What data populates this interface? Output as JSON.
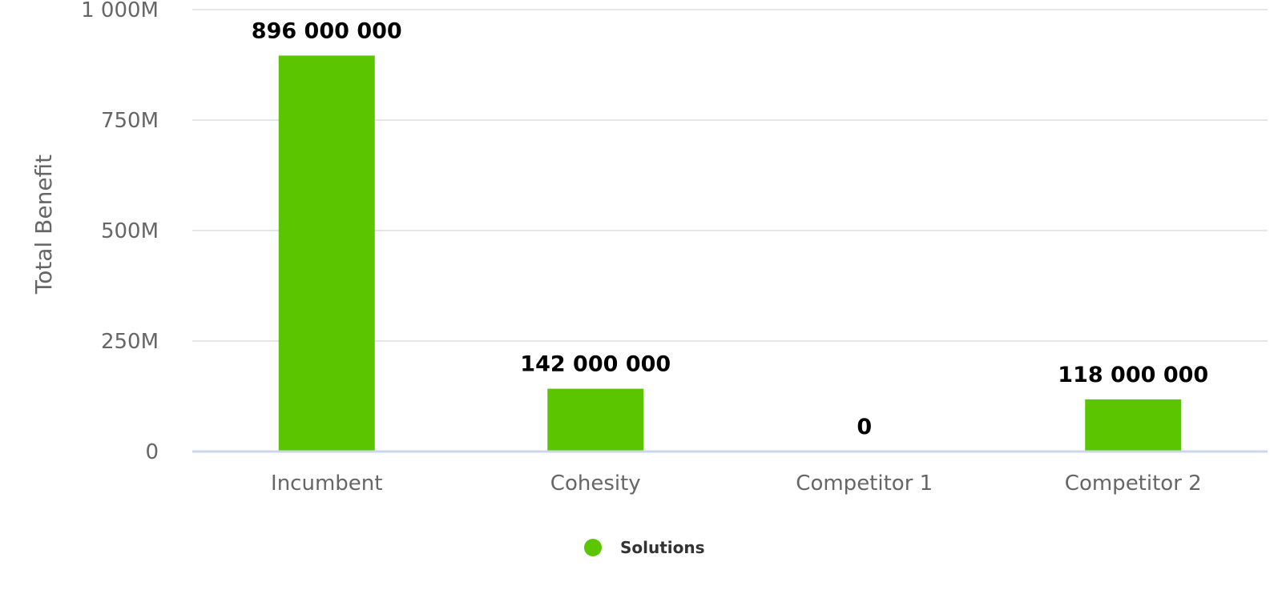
{
  "chart_data": {
    "type": "bar",
    "title": "",
    "xlabel": "",
    "ylabel": "Total Benefit",
    "categories": [
      "Incumbent",
      "Cohesity",
      "Competitor 1",
      "Competitor 2"
    ],
    "series": [
      {
        "name": "Solutions",
        "color": "#5bc500",
        "values": [
          896000000,
          142000000,
          0,
          118000000
        ],
        "data_labels": [
          "896 000 000",
          "142 000 000",
          "0",
          "118 000 000"
        ]
      }
    ],
    "ylim": [
      0,
      1000000000
    ],
    "yticks": [
      0,
      250000000,
      500000000,
      750000000,
      1000000000
    ],
    "ytick_labels": [
      "0",
      "250M",
      "500M",
      "750M",
      "1 000M"
    ],
    "grid": true,
    "legend": "bottom-center"
  }
}
